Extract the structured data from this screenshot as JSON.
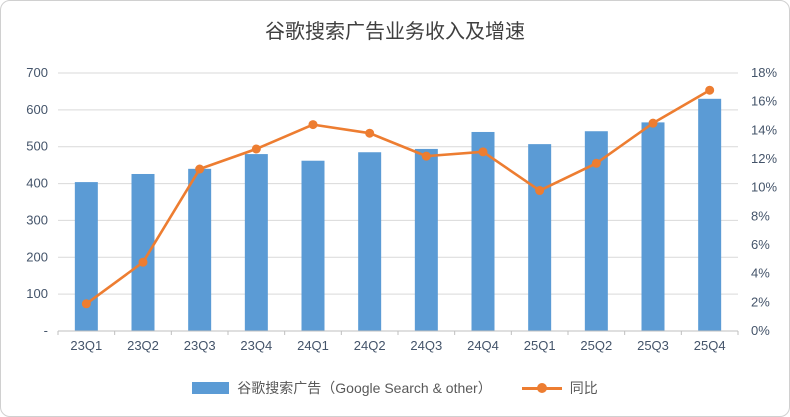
{
  "chart_data": {
    "type": "bar",
    "combo": "bar+line",
    "title": "谷歌搜索广告业务收入及增速",
    "categories": [
      "23Q1",
      "23Q2",
      "23Q3",
      "23Q4",
      "24Q1",
      "24Q2",
      "24Q3",
      "24Q4",
      "25Q1",
      "25Q2",
      "25Q3",
      "25Q4"
    ],
    "series": [
      {
        "name": "谷歌搜索广告（Google Search & other）",
        "type": "bar",
        "axis": "left",
        "color": "#5B9BD5",
        "values": [
          404,
          426,
          440,
          480,
          462,
          485,
          494,
          540,
          507,
          542,
          566,
          630
        ]
      },
      {
        "name": "同比",
        "type": "line",
        "axis": "right",
        "color": "#ED7D31",
        "values": [
          1.9,
          4.8,
          11.3,
          12.7,
          14.4,
          13.8,
          12.2,
          12.5,
          9.8,
          11.7,
          14.5,
          16.8
        ]
      }
    ],
    "left_axis": {
      "min": 0,
      "max": 700,
      "step": 100,
      "tick_labels": [
        "-",
        "100",
        "200",
        "300",
        "400",
        "500",
        "600",
        "700"
      ]
    },
    "right_axis": {
      "min": 0,
      "max": 18,
      "step": 2,
      "tick_labels": [
        "0%",
        "2%",
        "4%",
        "6%",
        "8%",
        "10%",
        "12%",
        "14%",
        "16%",
        "18%"
      ]
    },
    "grid": true,
    "legend_position": "bottom",
    "colors": {
      "gridline": "#D9D9D9",
      "axis_line": "#BFBFBF",
      "tick_text": "#44546A",
      "title_text": "#3f3f3f"
    }
  }
}
